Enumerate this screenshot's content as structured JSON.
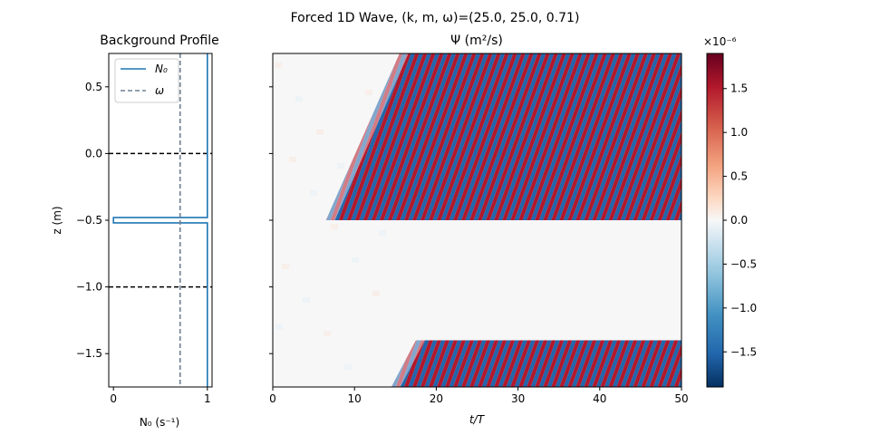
{
  "figure": {
    "suptitle": "Forced 1D Wave, (k, m, ω)=(25.0, 25.0, 0.71)"
  },
  "chart_data": [
    {
      "type": "line",
      "title": "Background Profile",
      "xlabel": "N₀ (s⁻¹)",
      "ylabel": "z (m)",
      "xlim": [
        -0.05,
        1.05
      ],
      "ylim": [
        -1.75,
        0.75
      ],
      "xticks": [
        0,
        1
      ],
      "yticks": [
        0.5,
        0.0,
        -0.5,
        -1.0,
        -1.5
      ],
      "xtick_labels": [
        "0",
        "1"
      ],
      "ytick_labels": [
        "0.5",
        "0.0",
        "−0.5",
        "−1.0",
        "−1.5"
      ],
      "legend": {
        "placement": "upper-left",
        "entries": [
          "N₀",
          "ω"
        ]
      },
      "series": [
        {
          "name": "N₀",
          "color": "#1f77b4",
          "style": "solid",
          "x": [
            1.0,
            1.0,
            0.0,
            0.0,
            1.0,
            1.0
          ],
          "y": [
            0.75,
            -0.48,
            -0.48,
            -0.52,
            -0.52,
            -1.75
          ]
        },
        {
          "name": "ω",
          "color": "#708090",
          "style": "dashed",
          "x": [
            0.71,
            0.71
          ],
          "y": [
            0.75,
            -1.75
          ]
        }
      ],
      "hlines": [
        {
          "y": 0.0,
          "color": "#000000",
          "style": "dashed"
        },
        {
          "y": -1.0,
          "color": "#000000",
          "style": "dashed"
        }
      ]
    },
    {
      "type": "heatmap",
      "title": "Ψ (m²/s)",
      "xlabel": "t/T",
      "xlim": [
        0,
        50
      ],
      "ylim": [
        -1.75,
        0.75
      ],
      "xticks": [
        0,
        10,
        20,
        30,
        40,
        50
      ],
      "xtick_labels": [
        "0",
        "10",
        "20",
        "30",
        "40",
        "50"
      ],
      "colormap": "RdBu_r",
      "colorbar": {
        "range": [
          -1.9,
          1.9
        ],
        "ticks": [
          1.5,
          1.0,
          0.5,
          0.0,
          -0.5,
          -1.0,
          -1.5
        ],
        "tick_labels": [
          "1.5",
          "1.0",
          "0.5",
          "0.0",
          "−0.5",
          "−1.0",
          "−1.5"
        ],
        "multiplier": "×10⁻⁶"
      },
      "wave_regions": [
        {
          "z_bottom": -0.5,
          "z_top": 0.75,
          "front_start_t": 6.5,
          "front_top_t": 15.5
        },
        {
          "z_bottom": -1.75,
          "z_top": -1.4,
          "front_start_t": 14.5,
          "front_top_t": 17.5
        }
      ],
      "wave_period_t": 1.0
    }
  ]
}
